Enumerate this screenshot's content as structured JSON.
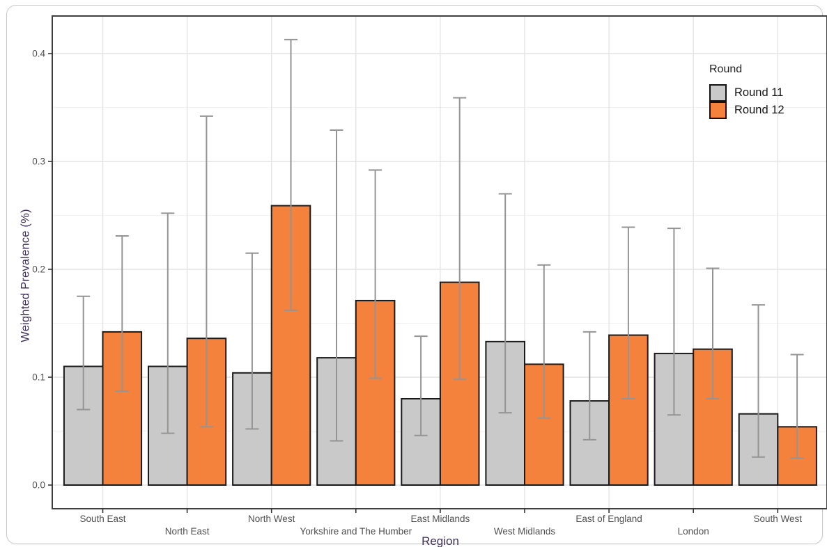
{
  "chart_data": {
    "type": "bar",
    "title": "",
    "xlabel": "Region",
    "ylabel": "Weighted Prevalence (%)",
    "ylim": [
      -0.022,
      0.435
    ],
    "yticks": [
      0.0,
      0.1,
      0.2,
      0.3,
      0.4
    ],
    "ytick_labels": [
      "0.0",
      "0.1",
      "0.2",
      "0.3",
      "0.4"
    ],
    "yminor_ticks": [
      0.05,
      0.15,
      0.25,
      0.35
    ],
    "grid": true,
    "error_bars": true,
    "categories": [
      "South East",
      "North East",
      "North West",
      "Yorkshire and The Humber",
      "East Midlands",
      "West Midlands",
      "East of England",
      "London",
      "South West"
    ],
    "series": [
      {
        "name": "Round 11",
        "color": "#C9C9C9",
        "values": [
          0.11,
          0.11,
          0.104,
          0.118,
          0.08,
          0.133,
          0.078,
          0.122,
          0.066
        ],
        "ci_low": [
          0.07,
          0.048,
          0.052,
          0.041,
          0.046,
          0.067,
          0.042,
          0.065,
          0.026
        ],
        "ci_high": [
          0.175,
          0.252,
          0.215,
          0.329,
          0.138,
          0.27,
          0.142,
          0.238,
          0.167
        ]
      },
      {
        "name": "Round 12",
        "color": "#F5823C",
        "values": [
          0.142,
          0.136,
          0.259,
          0.171,
          0.188,
          0.112,
          0.139,
          0.126,
          0.054
        ],
        "ci_low": [
          0.087,
          0.054,
          0.162,
          0.099,
          0.098,
          0.062,
          0.08,
          0.08,
          0.025
        ],
        "ci_high": [
          0.231,
          0.342,
          0.413,
          0.292,
          0.359,
          0.204,
          0.239,
          0.201,
          0.121
        ]
      }
    ],
    "legend": {
      "title": "Round",
      "entries": [
        "Round 11",
        "Round 12"
      ],
      "position": "top-right-inside"
    }
  },
  "styles": {
    "bar_outline": "#1a1a1a",
    "errorbar_color": "#949494",
    "panel_border": "#3f3f3f",
    "grid_major": "#e4e4e4",
    "grid_minor": "#f1f1f1",
    "tick_color": "#333333",
    "tick_label_color": "#4f4f4f",
    "axis_title_color": "#3d2f5a"
  }
}
